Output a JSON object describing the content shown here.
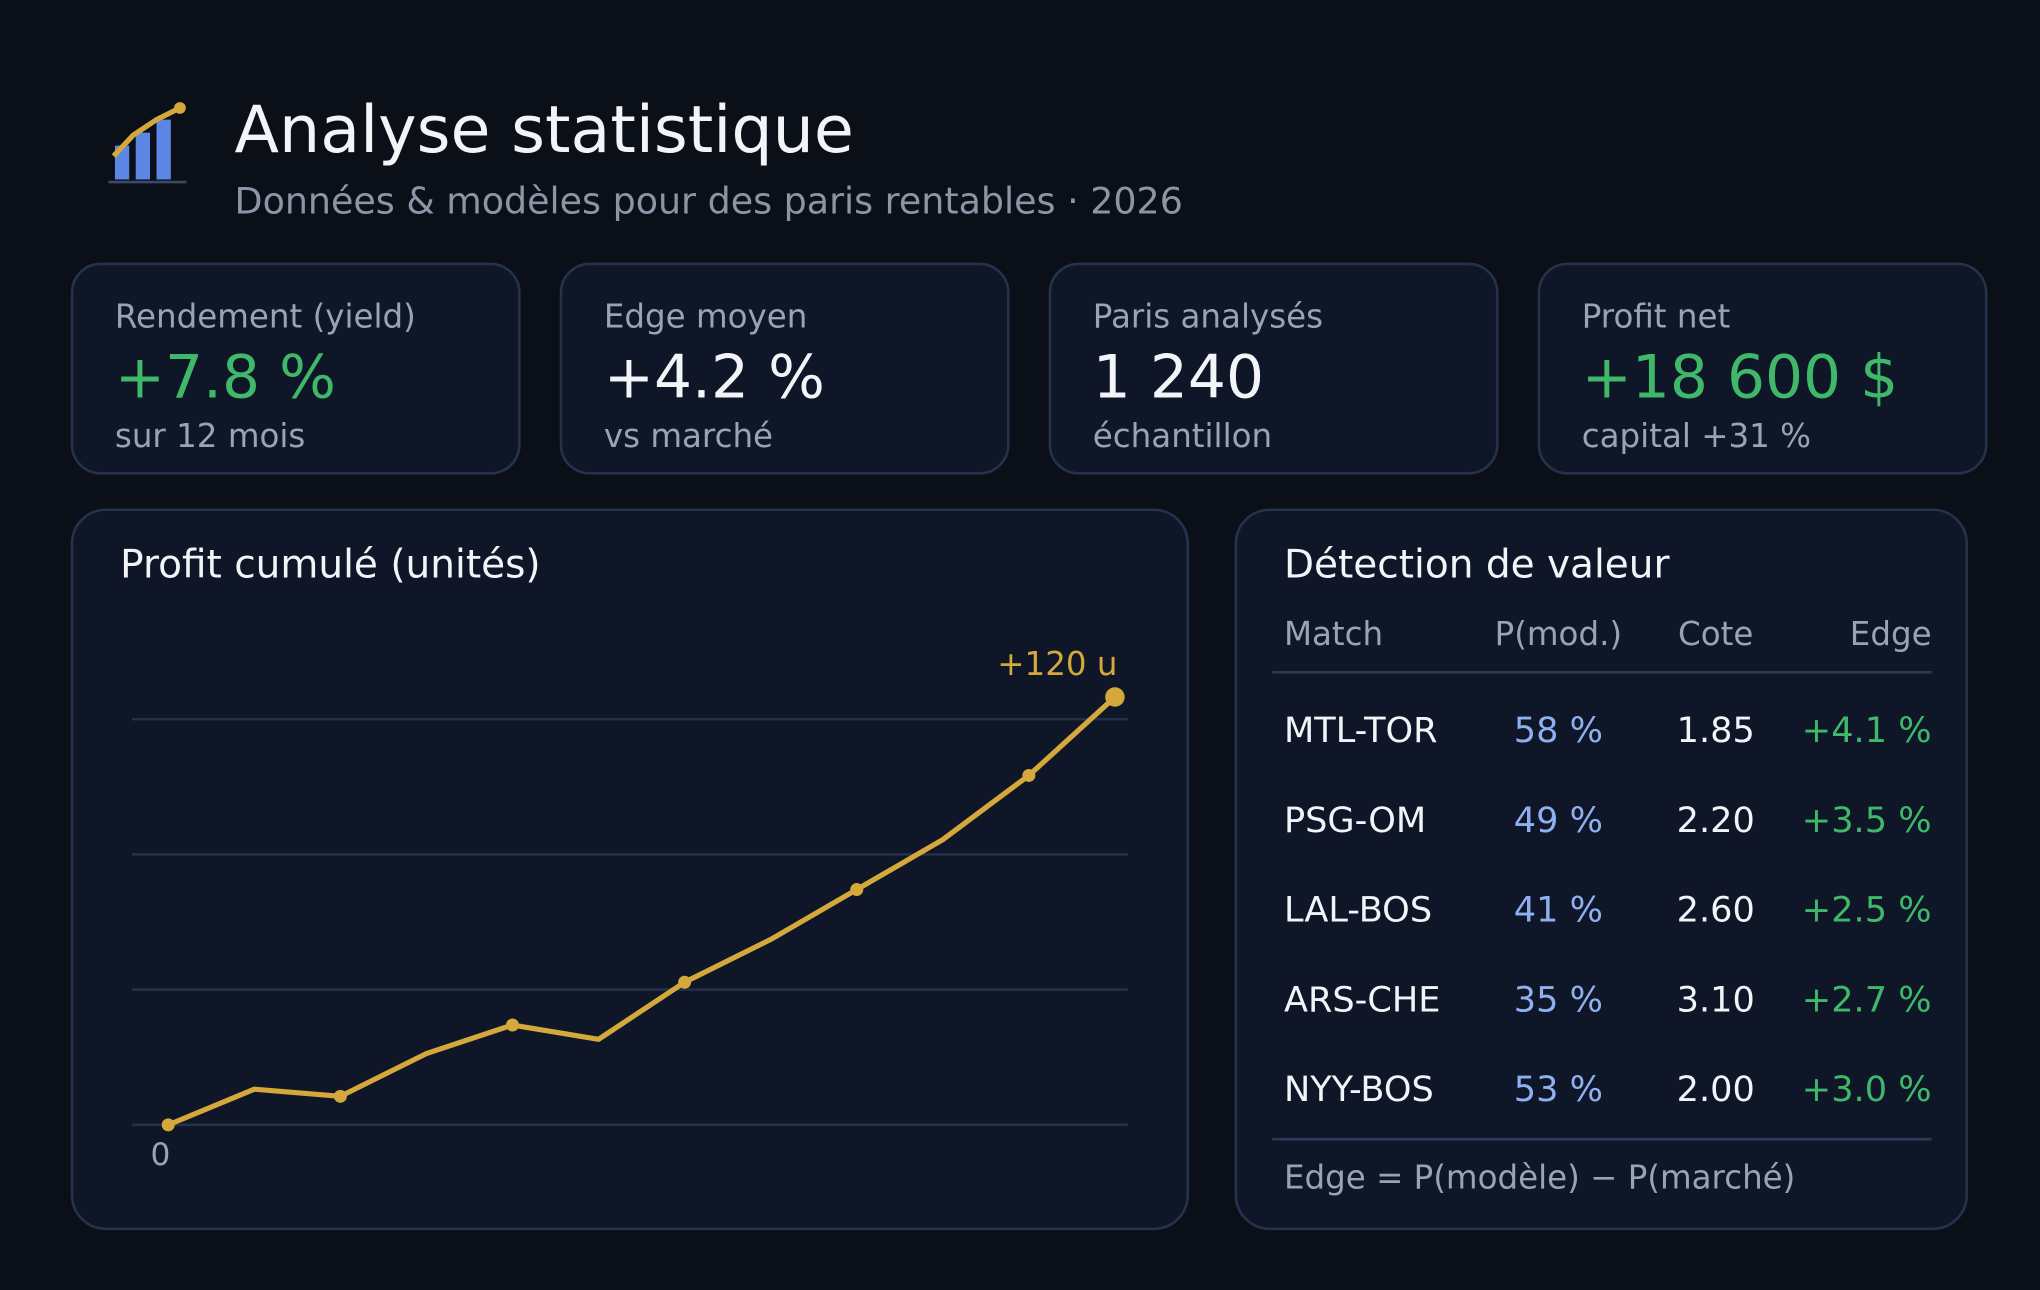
{
  "header": {
    "title": "Analyse statistique",
    "subtitle": "Données & modèles pour des paris rentables · 2026"
  },
  "kpis": [
    {
      "label": "Rendement (yield)",
      "value": "+7.8 %",
      "sub": "sur 12 mois"
    },
    {
      "label": "Edge moyen",
      "value": "+4.2 %",
      "sub": "vs marché"
    },
    {
      "label": "Paris analysés",
      "value": "1 240",
      "sub": "échantillon"
    },
    {
      "label": "Profit net",
      "value": "+18 600 $",
      "sub": "capital +31 %"
    }
  ],
  "chart_data": {
    "type": "line",
    "title": "Profit cumulé (unités)",
    "color": "#d4a83a",
    "x": [
      0,
      1,
      2,
      3,
      4,
      5,
      6,
      7,
      8,
      9,
      10,
      11
    ],
    "values": [
      0,
      10,
      8,
      20,
      28,
      24,
      40,
      52,
      66,
      80,
      98,
      120
    ],
    "xlim": [
      0,
      11
    ],
    "ylim": [
      0,
      120
    ],
    "yticks": [
      0
    ],
    "annotation": "+120 u"
  },
  "table": {
    "title": "Détection de valeur",
    "columns": [
      "Match",
      "P(mod.)",
      "Cote",
      "Edge"
    ],
    "rows": [
      [
        "MTL-TOR",
        "58 %",
        "1.85",
        "+4.1 %"
      ],
      [
        "PSG-OM",
        "49 %",
        "2.20",
        "+3.5 %"
      ],
      [
        "LAL-BOS",
        "41 %",
        "2.60",
        "+2.5 %"
      ],
      [
        "ARS-CHE",
        "35 %",
        "3.10",
        "+2.7 %"
      ],
      [
        "NYY-BOS",
        "53 %",
        "2.00",
        "+3.0 %"
      ]
    ],
    "note": "Edge = P(modèle) − P(marché)"
  }
}
